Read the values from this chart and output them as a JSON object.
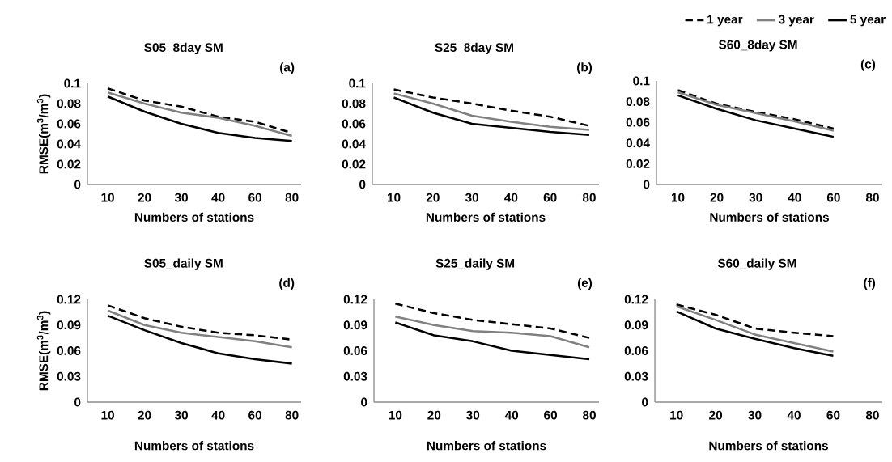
{
  "chart_data": [
    {
      "type": "line",
      "title": "S05_8day SM",
      "ylabel": "RMSE(m$^{3}$/m$^{3}$)",
      "xlabel": "Numbers of stations",
      "annotations": [
        "(a)"
      ],
      "categories": [
        "10",
        "20",
        "30",
        "40",
        "60",
        "80"
      ],
      "ylim": [
        0,
        0.1
      ],
      "yticks": [
        0,
        0.02,
        0.04,
        0.06,
        0.08,
        0.1
      ],
      "grid": false,
      "legend": false,
      "series": [
        {
          "color": "#000000",
          "line_style": "dashed",
          "values": [
            0.095,
            0.083,
            0.077,
            0.067,
            0.062,
            0.051
          ]
        },
        {
          "color": "#808080",
          "line_style": "solid",
          "values": [
            0.091,
            0.08,
            0.071,
            0.066,
            0.058,
            0.048
          ]
        },
        {
          "color": "#000000",
          "line_style": "solid",
          "values": [
            0.087,
            0.072,
            0.06,
            0.051,
            0.046,
            0.043
          ]
        }
      ]
    },
    {
      "type": "line",
      "title": "S25_8day SM",
      "xlabel": "Numbers of stations",
      "annotations": [
        "(b)"
      ],
      "categories": [
        "10",
        "20",
        "30",
        "40",
        "60",
        "80"
      ],
      "ylim": [
        0,
        0.1
      ],
      "yticks": [
        0,
        0.02,
        0.04,
        0.06,
        0.08,
        0.1
      ],
      "grid": false,
      "legend": false,
      "series": [
        {
          "color": "#000000",
          "line_style": "dashed",
          "values": [
            0.094,
            0.086,
            0.08,
            0.073,
            0.067,
            0.058
          ]
        },
        {
          "color": "#808080",
          "line_style": "solid",
          "values": [
            0.09,
            0.08,
            0.068,
            0.062,
            0.057,
            0.054
          ]
        },
        {
          "color": "#000000",
          "line_style": "solid",
          "values": [
            0.086,
            0.071,
            0.06,
            0.056,
            0.052,
            0.049
          ]
        }
      ]
    },
    {
      "type": "line",
      "title": "S60_8day SM",
      "xlabel": "Numbers of stations",
      "annotations": [
        "(c)"
      ],
      "categories": [
        "10",
        "20",
        "30",
        "40",
        "60",
        "80"
      ],
      "ylim": [
        0,
        0.1
      ],
      "yticks": [
        0,
        0.02,
        0.04,
        0.06,
        0.08,
        0.1
      ],
      "grid": false,
      "legend": "top right",
      "series": [
        {
          "name": "1 year",
          "color": "#000000",
          "line_style": "dashed",
          "values": [
            0.091,
            0.078,
            0.07,
            0.063,
            0.054,
            null
          ]
        },
        {
          "name": "3 year",
          "color": "#808080",
          "line_style": "solid",
          "values": [
            0.089,
            0.077,
            0.069,
            0.061,
            0.052,
            null
          ]
        },
        {
          "name": "5 year",
          "color": "#000000",
          "line_style": "solid",
          "values": [
            0.086,
            0.073,
            0.062,
            0.054,
            0.046,
            null
          ]
        }
      ]
    },
    {
      "type": "line",
      "title": "S05_daily SM",
      "ylabel": "RMSE(m$^{3}$/m$^{3}$)",
      "xlabel": "Numbers of stations",
      "annotations": [
        "(d)"
      ],
      "categories": [
        "10",
        "20",
        "30",
        "40",
        "60",
        "80"
      ],
      "ylim": [
        0,
        0.12
      ],
      "yticks": [
        0,
        0.03,
        0.06,
        0.09,
        0.12
      ],
      "grid": false,
      "legend": false,
      "series": [
        {
          "color": "#000000",
          "line_style": "dashed",
          "values": [
            0.113,
            0.098,
            0.088,
            0.081,
            0.078,
            0.073
          ]
        },
        {
          "color": "#808080",
          "line_style": "solid",
          "values": [
            0.107,
            0.09,
            0.081,
            0.076,
            0.071,
            0.064
          ]
        },
        {
          "color": "#000000",
          "line_style": "solid",
          "values": [
            0.101,
            0.084,
            0.069,
            0.057,
            0.05,
            0.045
          ]
        }
      ]
    },
    {
      "type": "line",
      "title": "S25_daily SM",
      "xlabel": "Numbers of stations",
      "annotations": [
        "(e)"
      ],
      "categories": [
        "10",
        "20",
        "30",
        "40",
        "60",
        "80"
      ],
      "ylim": [
        0,
        0.12
      ],
      "yticks": [
        0,
        0.03,
        0.06,
        0.09,
        0.12
      ],
      "grid": false,
      "legend": false,
      "series": [
        {
          "color": "#000000",
          "line_style": "dashed",
          "values": [
            0.115,
            0.104,
            0.096,
            0.091,
            0.086,
            0.075
          ]
        },
        {
          "color": "#808080",
          "line_style": "solid",
          "values": [
            0.1,
            0.09,
            0.083,
            0.081,
            0.077,
            0.064
          ]
        },
        {
          "color": "#000000",
          "line_style": "solid",
          "values": [
            0.093,
            0.078,
            0.071,
            0.06,
            0.055,
            0.05
          ]
        }
      ]
    },
    {
      "type": "line",
      "title": "S60_daily SM",
      "xlabel": "Numbers of stations",
      "annotations": [
        "(f)"
      ],
      "categories": [
        "10",
        "20",
        "30",
        "40",
        "60",
        "80"
      ],
      "ylim": [
        0,
        0.12
      ],
      "yticks": [
        0,
        0.03,
        0.06,
        0.09,
        0.12
      ],
      "grid": false,
      "legend": false,
      "series": [
        {
          "color": "#000000",
          "line_style": "dashed",
          "values": [
            0.114,
            0.102,
            0.086,
            0.081,
            0.077,
            null
          ]
        },
        {
          "color": "#808080",
          "line_style": "solid",
          "values": [
            0.112,
            0.096,
            0.079,
            0.069,
            0.059,
            null
          ]
        },
        {
          "color": "#000000",
          "line_style": "solid",
          "values": [
            0.106,
            0.086,
            0.074,
            0.063,
            0.054,
            null
          ]
        }
      ]
    }
  ]
}
